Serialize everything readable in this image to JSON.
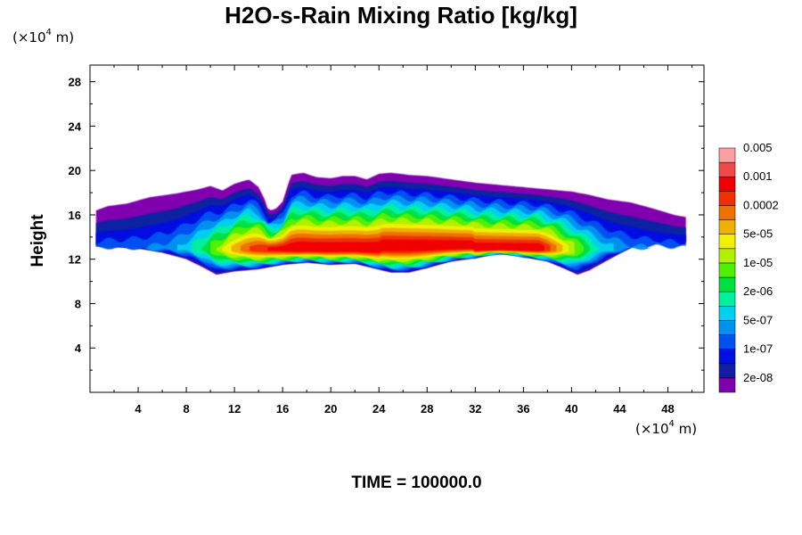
{
  "chart_data": {
    "type": "area",
    "title": "H2O-s-Rain Mixing Ratio [kg/kg]",
    "ylabel": "Height",
    "xlabel": "",
    "x_unit": {
      "prefix": "(×10",
      "exp": "4",
      "suffix": " m)"
    },
    "y_unit": {
      "prefix": "(×10",
      "exp": "4",
      "suffix": " m)"
    },
    "xlim": [
      0,
      51
    ],
    "ylim": [
      0,
      29.5
    ],
    "x_ticks": [
      4,
      8,
      12,
      16,
      20,
      24,
      28,
      32,
      36,
      40,
      44,
      48
    ],
    "y_ticks": [
      4,
      8,
      12,
      16,
      20,
      24,
      28
    ],
    "time_label": "TIME = 100000.0",
    "colorbar": {
      "colors": [
        "#8000b0",
        "#1020a0",
        "#0010e0",
        "#0050f0",
        "#0090f0",
        "#00d0f0",
        "#00f0a0",
        "#00e040",
        "#50f000",
        "#b0f000",
        "#f0f000",
        "#f0b000",
        "#f07000",
        "#f03000",
        "#f00000",
        "#f04848",
        "#f8a0a0"
      ],
      "labels": [
        "2e-08",
        "1e-07",
        "5e-07",
        "2e-06",
        "1e-05",
        "5e-05",
        "0.0002",
        "0.001",
        "0.005"
      ]
    },
    "field": {
      "description": "rain mixing ratio shading between heights of roughly 10.5 and 19.5",
      "x_extent": [
        0.5,
        49.5
      ],
      "core_max": "0.001-0.005 near x=20-23 and x=34-38, height about 12-14"
    }
  }
}
